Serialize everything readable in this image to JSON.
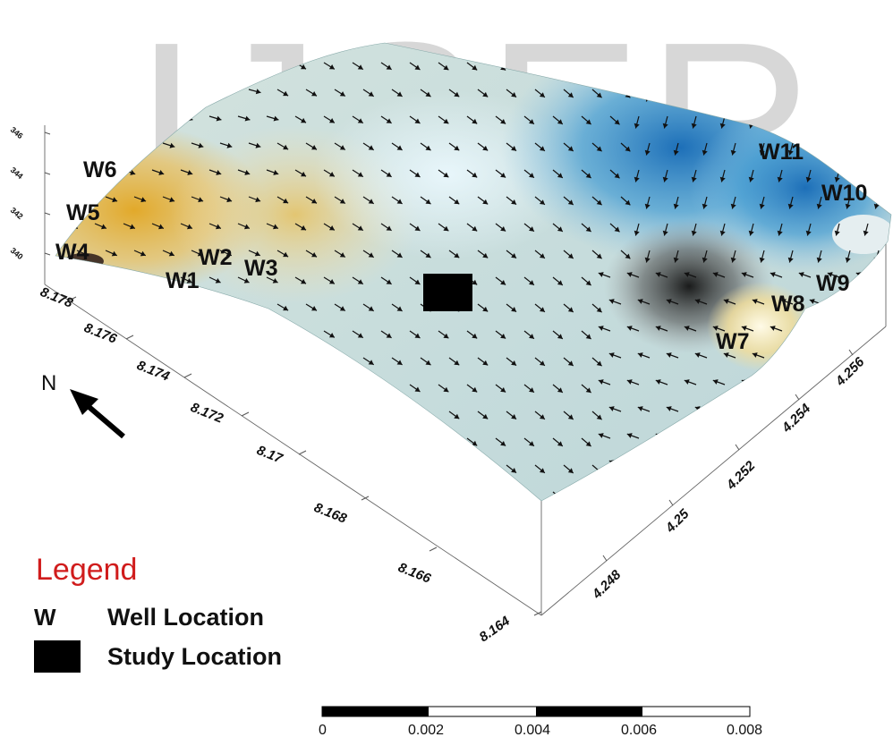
{
  "watermark": "IJSER",
  "north": {
    "label": "N"
  },
  "wells": [
    {
      "label": "W1"
    },
    {
      "label": "W2"
    },
    {
      "label": "W3"
    },
    {
      "label": "W4"
    },
    {
      "label": "W5"
    },
    {
      "label": "W6"
    },
    {
      "label": "W7"
    },
    {
      "label": "W8"
    },
    {
      "label": "W9"
    },
    {
      "label": "W10"
    },
    {
      "label": "W11"
    }
  ],
  "axis_front": [
    "8.178",
    "8.176",
    "8.174",
    "8.172",
    "8.17",
    "8.168",
    "8.166",
    "8.164"
  ],
  "axis_right": [
    "4.248",
    "4.25",
    "4.252",
    "4.254",
    "4.256"
  ],
  "axis_z": [
    "346",
    "344",
    "342",
    "340"
  ],
  "scale_bar": [
    "0",
    "0.002",
    "0.004",
    "0.006",
    "0.008"
  ],
  "legend": {
    "title": "Legend",
    "well_symbol": "W",
    "well_label": "Well Location",
    "study_label": "Study Location"
  },
  "colors": {
    "surface_base": "#c6dcdc",
    "high_head": "#e2b43a",
    "low_head": "#1d78c0",
    "depression": "#1a1a1a",
    "legend_title": "#d01c1c"
  }
}
